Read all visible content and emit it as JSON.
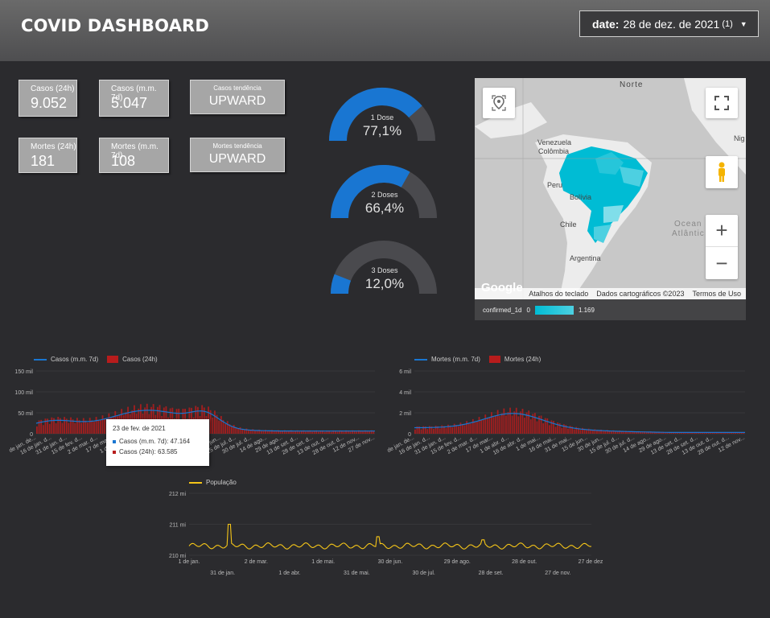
{
  "header": {
    "title": "COVID DASHBOARD"
  },
  "date_control": {
    "label": "date:",
    "value": "28 de dez. de 2021",
    "count": "(1)"
  },
  "kpis": [
    {
      "label": "Casos (24h)",
      "value": "9.052"
    },
    {
      "label": "Casos (m.m. 7d)",
      "value": "5.047"
    },
    {
      "label": "Casos tendência",
      "value": "UPWARD"
    },
    {
      "label": "Mortes (24h)",
      "value": "181"
    },
    {
      "label": "Mortes (m.m. 7d)",
      "value": "108"
    },
    {
      "label": "Mortes tendência",
      "value": "UPWARD"
    }
  ],
  "gauges": [
    {
      "label": "1 Dose",
      "value": "77,1%",
      "fraction": 0.771
    },
    {
      "label": "2 Doses",
      "value": "66,4%",
      "fraction": 0.664
    },
    {
      "label": "3 Doses",
      "value": "12,0%",
      "fraction": 0.12
    }
  ],
  "colors": {
    "accent": "#1976d2",
    "case_bar": "#b71c1c",
    "map_fill": "#26c6da",
    "pop_line": "#f5c518",
    "gauge_track": "#4a4a4e"
  },
  "map": {
    "labels": {
      "north": "Norte",
      "venezuela": "Venezuela",
      "colombia": "Colômbia",
      "peru": "Peru",
      "bolivia": "Bolívia",
      "chile": "Chile",
      "argentina": "Argentina",
      "ocean1": "Ocean",
      "ocean2": "Atlântic",
      "ni": "Nig"
    },
    "footer": {
      "shortcuts": "Atalhos do teclado",
      "data": "Dados cartográficos ©2023",
      "terms": "Termos de Uso",
      "google": "Google"
    },
    "legend": {
      "metric": "confirmed_1d",
      "min": "0",
      "max": "1.169"
    }
  },
  "chart_data": [
    {
      "type": "bar",
      "series": [
        {
          "name": "Casos (m.m. 7d)"
        },
        {
          "name": "Casos (24h)"
        }
      ],
      "y_ticks": [
        "150 mil",
        "100 mil",
        "50 mil",
        "0"
      ],
      "ylim": [
        0,
        150000
      ],
      "x_ticks": [
        "de jan. de...",
        "16 de jan. d...",
        "31 de jan. d...",
        "15 de fev. d...",
        "2 de mar. d...",
        "17 de mar...",
        "1 de abr. d...",
        "16 de abr. d...",
        "1 de mai...",
        "16 de mai...",
        "31 de mai...",
        "15 de jun...",
        "30 de jun...",
        "15 de jul. d...",
        "30 de jul. d...",
        "14 de ago...",
        "29 de ago...",
        "13 de set. d...",
        "28 de set. d...",
        "13 de out. d...",
        "28 de out. d...",
        "12 de nov...",
        "27 de nov..."
      ],
      "tooltip": {
        "date": "23 de fev. de 2021",
        "lines": [
          "Casos (m.m. 7d): 47.164",
          "Casos (24h): 63.585"
        ]
      }
    },
    {
      "type": "bar",
      "series": [
        {
          "name": "Mortes (m.m. 7d)"
        },
        {
          "name": "Mortes (24h)"
        }
      ],
      "y_ticks": [
        "6 mil",
        "4 mil",
        "2 mil",
        "0"
      ],
      "ylim": [
        0,
        6000
      ],
      "x_ticks": [
        "de jan. de...",
        "16 de jan. d...",
        "31 de jan. d...",
        "15 de fev. d...",
        "2 de mar. d...",
        "17 de mar...",
        "1 de abr. d...",
        "16 de abr. d...",
        "1 de mai...",
        "16 de mai...",
        "31 de mai...",
        "15 de jun...",
        "30 de jun...",
        "15 de jul. d...",
        "30 de jul. d...",
        "14 de ago...",
        "29 de ago...",
        "13 de set. d...",
        "28 de set. d...",
        "13 de out. d...",
        "28 de out. d...",
        "12 de nov..."
      ]
    },
    {
      "type": "line",
      "series": [
        {
          "name": "População"
        }
      ],
      "y_ticks": [
        "212 mi",
        "211 mi",
        "210 mi"
      ],
      "ylim": [
        210,
        212
      ],
      "x_ticks_top": [
        "1 de jan.",
        "2 de mar.",
        "1 de mai.",
        "30 de jun.",
        "29 de ago.",
        "28 de out.",
        "27 de dez."
      ],
      "x_ticks_bottom": [
        "31 de jan.",
        "1 de abr.",
        "31 de mai.",
        "30 de jul.",
        "28 de set.",
        "27 de nov."
      ]
    }
  ]
}
